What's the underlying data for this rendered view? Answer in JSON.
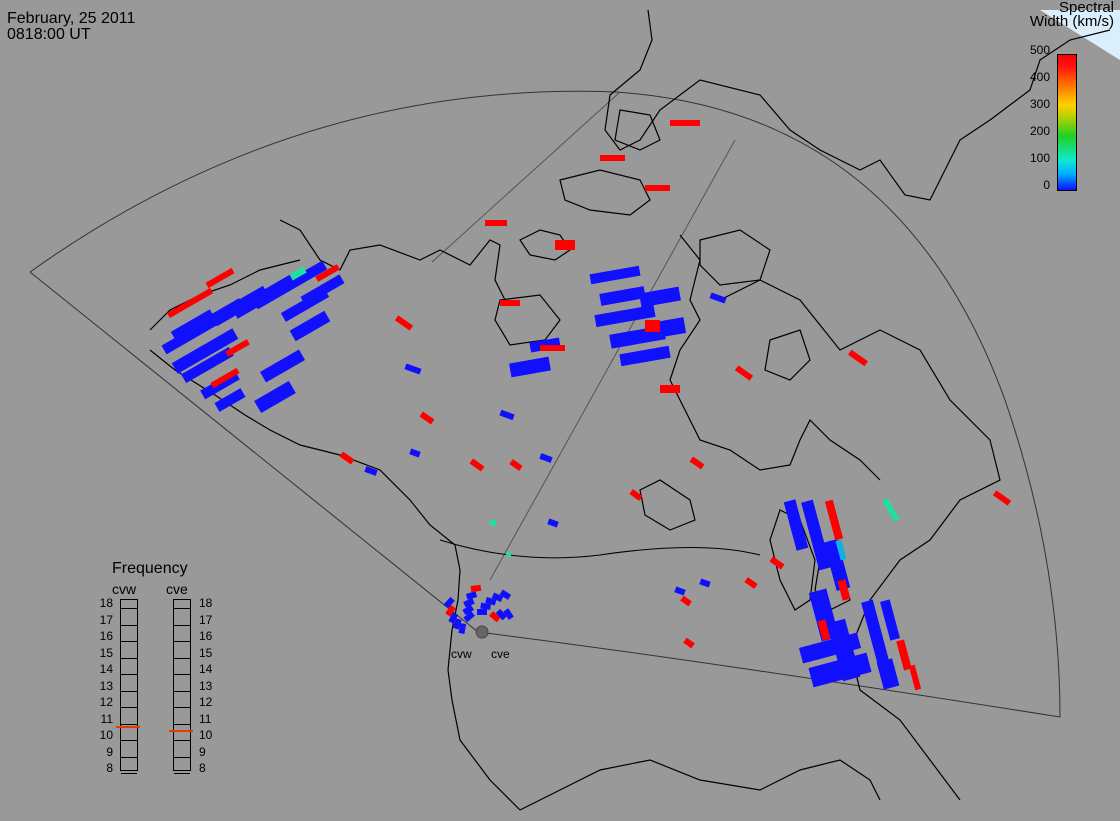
{
  "header": {
    "date": "February, 25 2011",
    "time": "0818:00 UT"
  },
  "colorbar": {
    "title_line1": "Spectral",
    "title_line2": "Width (km/s)",
    "ticks": [
      "500",
      "400",
      "300",
      "200",
      "100",
      "0"
    ],
    "colors": {
      "low": "#1010ff",
      "mid": "#20d020",
      "high": "#ff0000"
    }
  },
  "frequency": {
    "title": "Frequency",
    "radars": [
      "cvw",
      "cve"
    ],
    "scale": [
      "18",
      "17",
      "16",
      "15",
      "14",
      "13",
      "12",
      "11",
      "10",
      "9",
      "8"
    ],
    "cvw_mhz": 10.7,
    "cve_mhz": 10.5,
    "marker_color": "#e53b00"
  },
  "radar_labels": {
    "west": "cvw",
    "east": "cve"
  },
  "map_colors": {
    "background": "#999999",
    "coast": "#000000",
    "fov": "#333333",
    "echo_low": "#1010ff",
    "echo_high": "#ff0000",
    "echo_mid": "#20e0a0"
  }
}
